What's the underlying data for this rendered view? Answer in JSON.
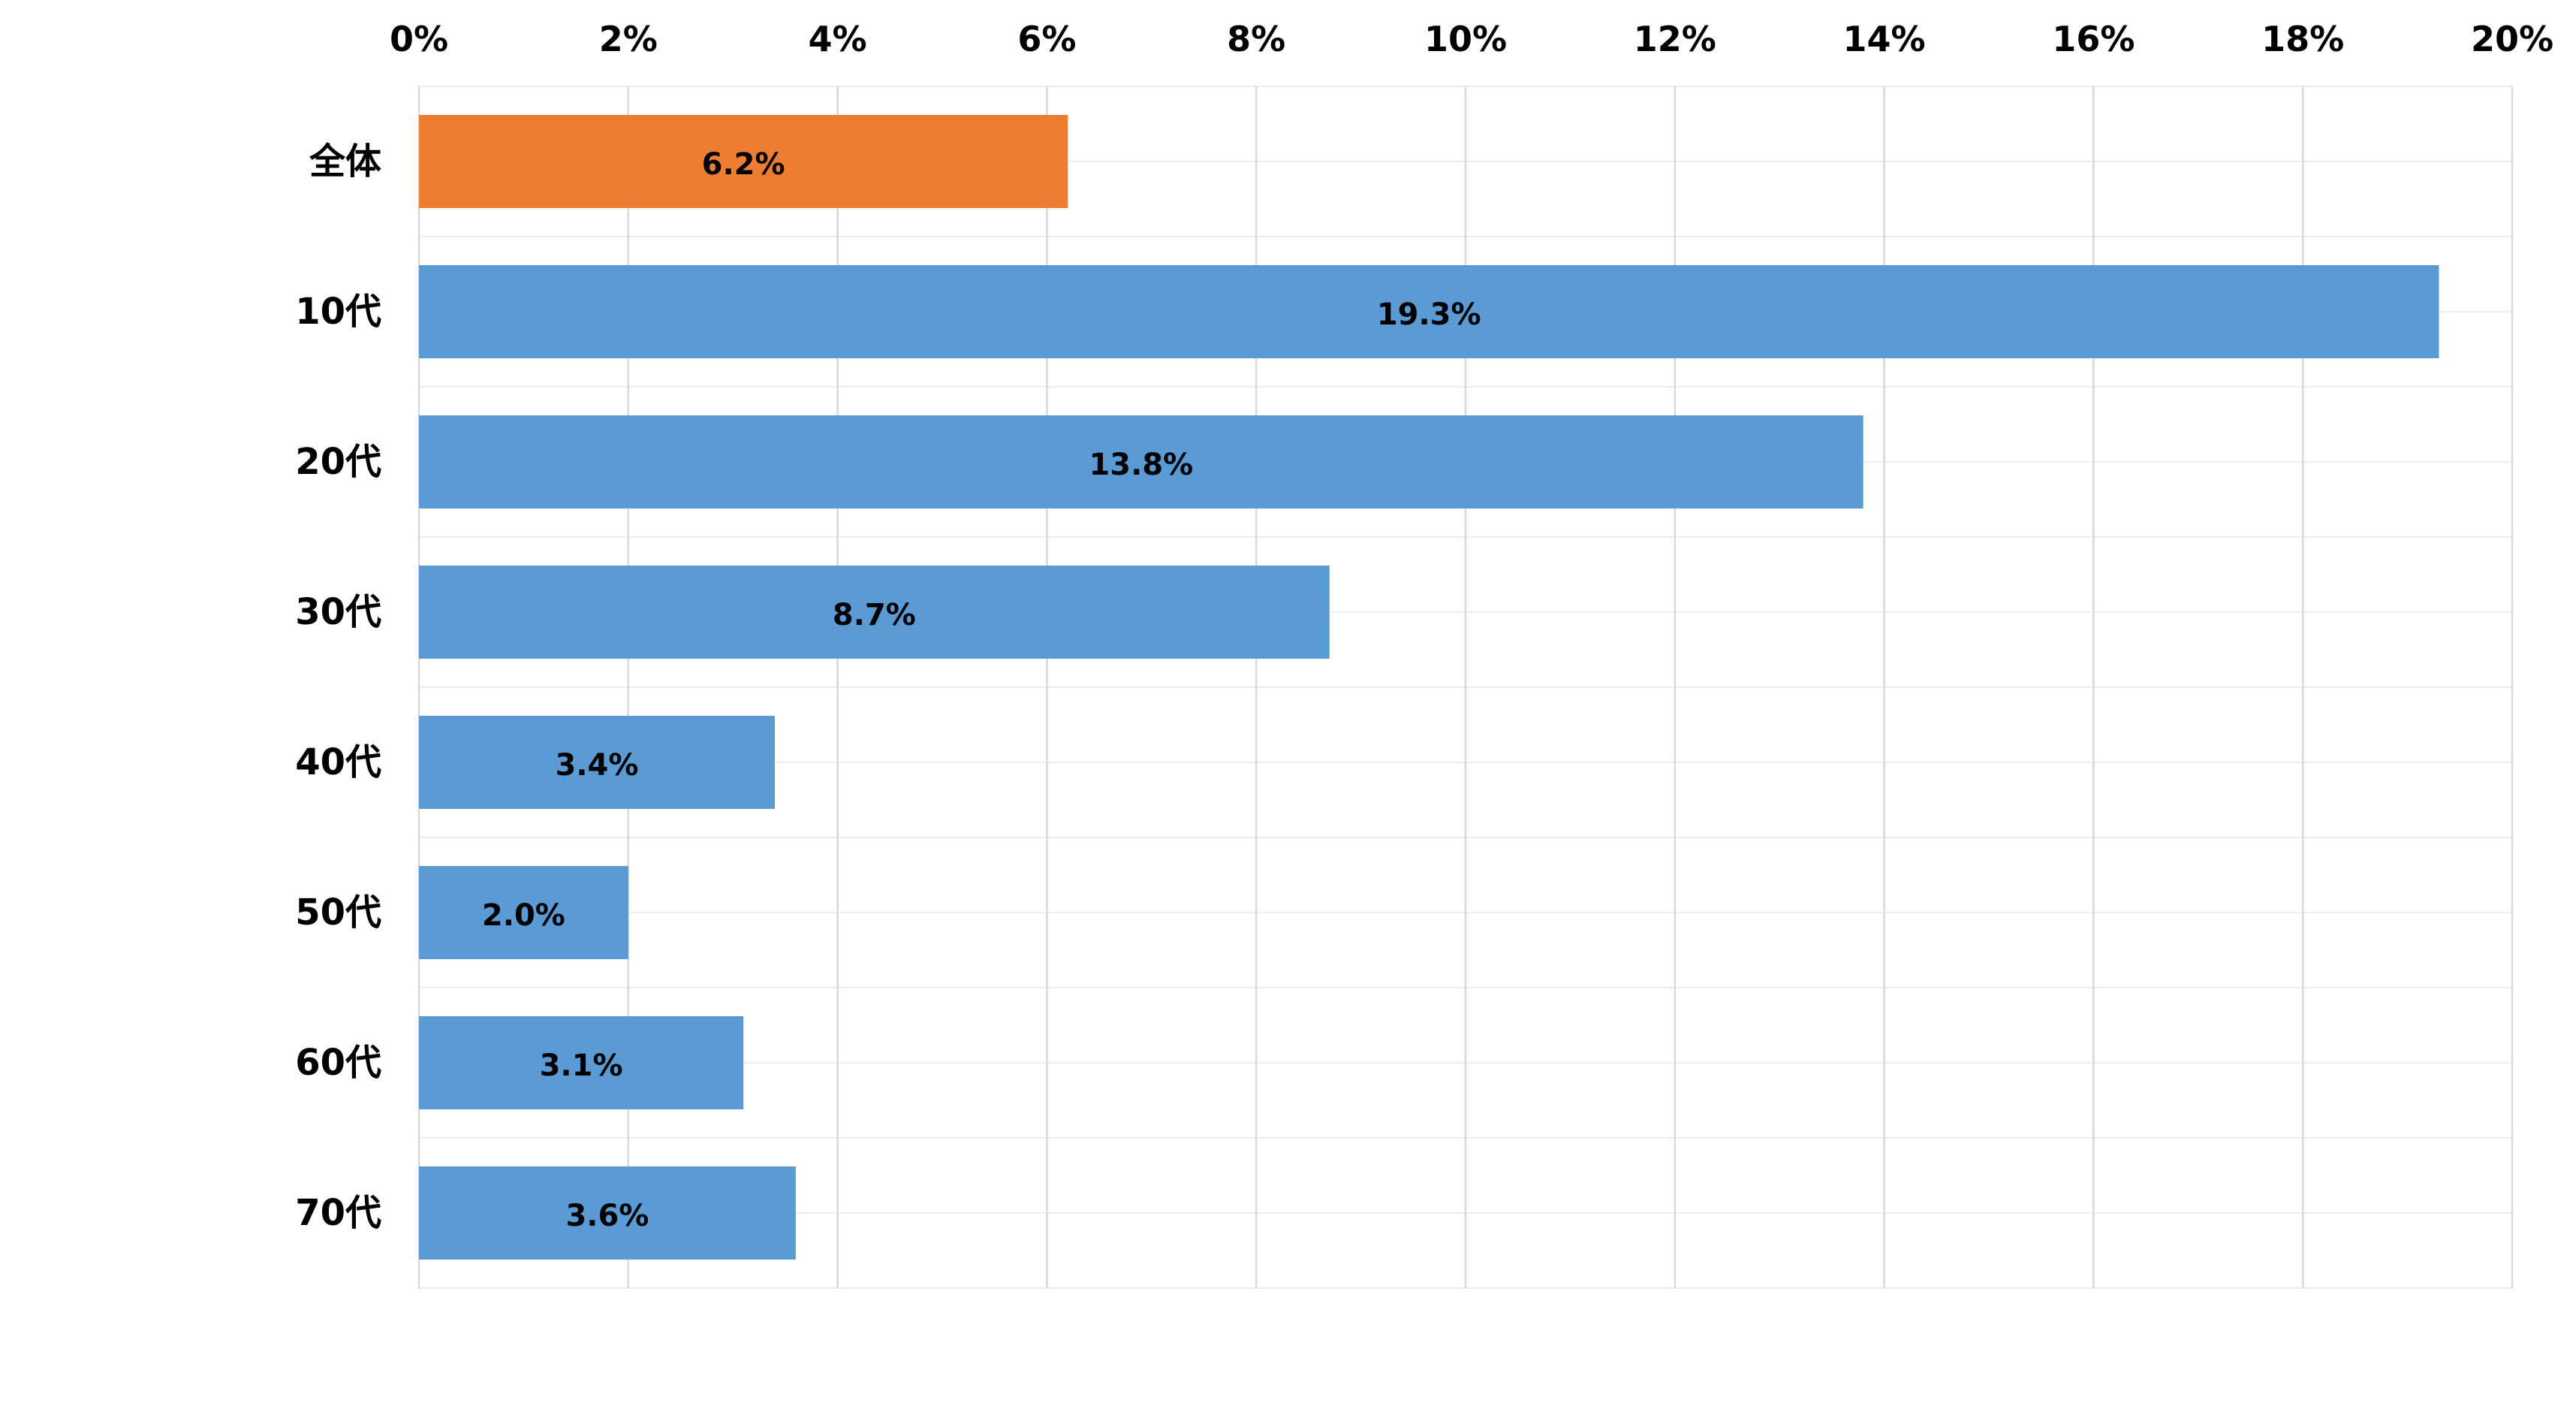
{
  "chart_data": {
    "type": "bar",
    "orientation": "horizontal",
    "categories": [
      "全体",
      "10代",
      "20代",
      "30代",
      "40代",
      "50代",
      "60代",
      "70代"
    ],
    "values": [
      6.2,
      19.3,
      13.8,
      8.7,
      3.4,
      2.0,
      3.1,
      3.6
    ],
    "data_labels": [
      "6.2%",
      "19.3%",
      "13.8%",
      "8.7%",
      "3.4%",
      "2.0%",
      "3.1%",
      "3.6%"
    ],
    "bar_colors": [
      "#ED7D31",
      "#5B9BD5",
      "#5B9BD5",
      "#5B9BD5",
      "#5B9BD5",
      "#5B9BD5",
      "#5B9BD5",
      "#5B9BD5"
    ],
    "xlim": [
      0,
      20
    ],
    "x_ticks": [
      0,
      2,
      4,
      6,
      8,
      10,
      12,
      14,
      16,
      18,
      20
    ],
    "x_tick_labels": [
      "0%",
      "2%",
      "4%",
      "6%",
      "8%",
      "10%",
      "12%",
      "14%",
      "16%",
      "18%",
      "20%"
    ],
    "x_axis_position": "top",
    "grid": true,
    "gridline_color": "#D9D9D9",
    "title": "",
    "xlabel": "",
    "ylabel": ""
  }
}
